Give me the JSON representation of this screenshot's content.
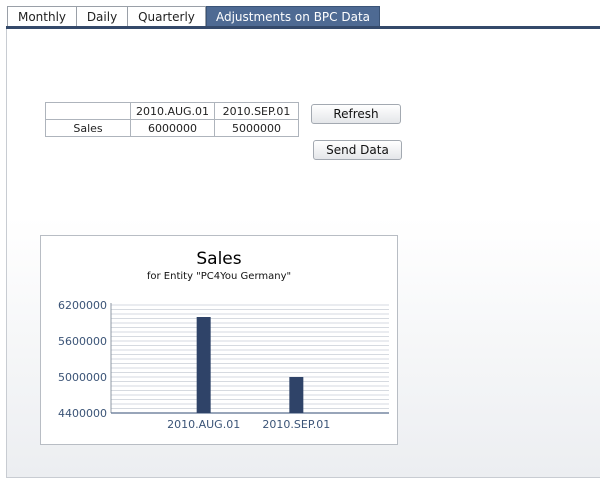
{
  "tabs": [
    {
      "label": "Monthly",
      "active": false
    },
    {
      "label": "Daily",
      "active": false
    },
    {
      "label": "Quarterly",
      "active": false
    },
    {
      "label": "Adjustments on BPC Data",
      "active": true
    }
  ],
  "table": {
    "headers": [
      "",
      "2010.AUG.01",
      "2010.SEP.01"
    ],
    "rows": [
      [
        "Sales",
        "6000000",
        "5000000"
      ]
    ]
  },
  "buttons": {
    "refresh": "Refresh",
    "send": "Send Data"
  },
  "colors": {
    "accent": "#34496a",
    "bar": "#2f4368",
    "axis_text": "#3b5477"
  },
  "chart_data": {
    "type": "bar",
    "title": "Sales",
    "subtitle": "for Entity \"PC4You Germany\"",
    "categories": [
      "2010.AUG.01",
      "2010.SEP.01"
    ],
    "values": [
      6000000,
      5000000
    ],
    "ylim": [
      4400000,
      6200000
    ],
    "yticks": [
      "6200000",
      "5600000",
      "5000000",
      "4400000"
    ],
    "ytick_values": [
      6200000,
      5600000,
      5000000,
      4400000
    ],
    "grid": true,
    "xlabel": "",
    "ylabel": ""
  }
}
